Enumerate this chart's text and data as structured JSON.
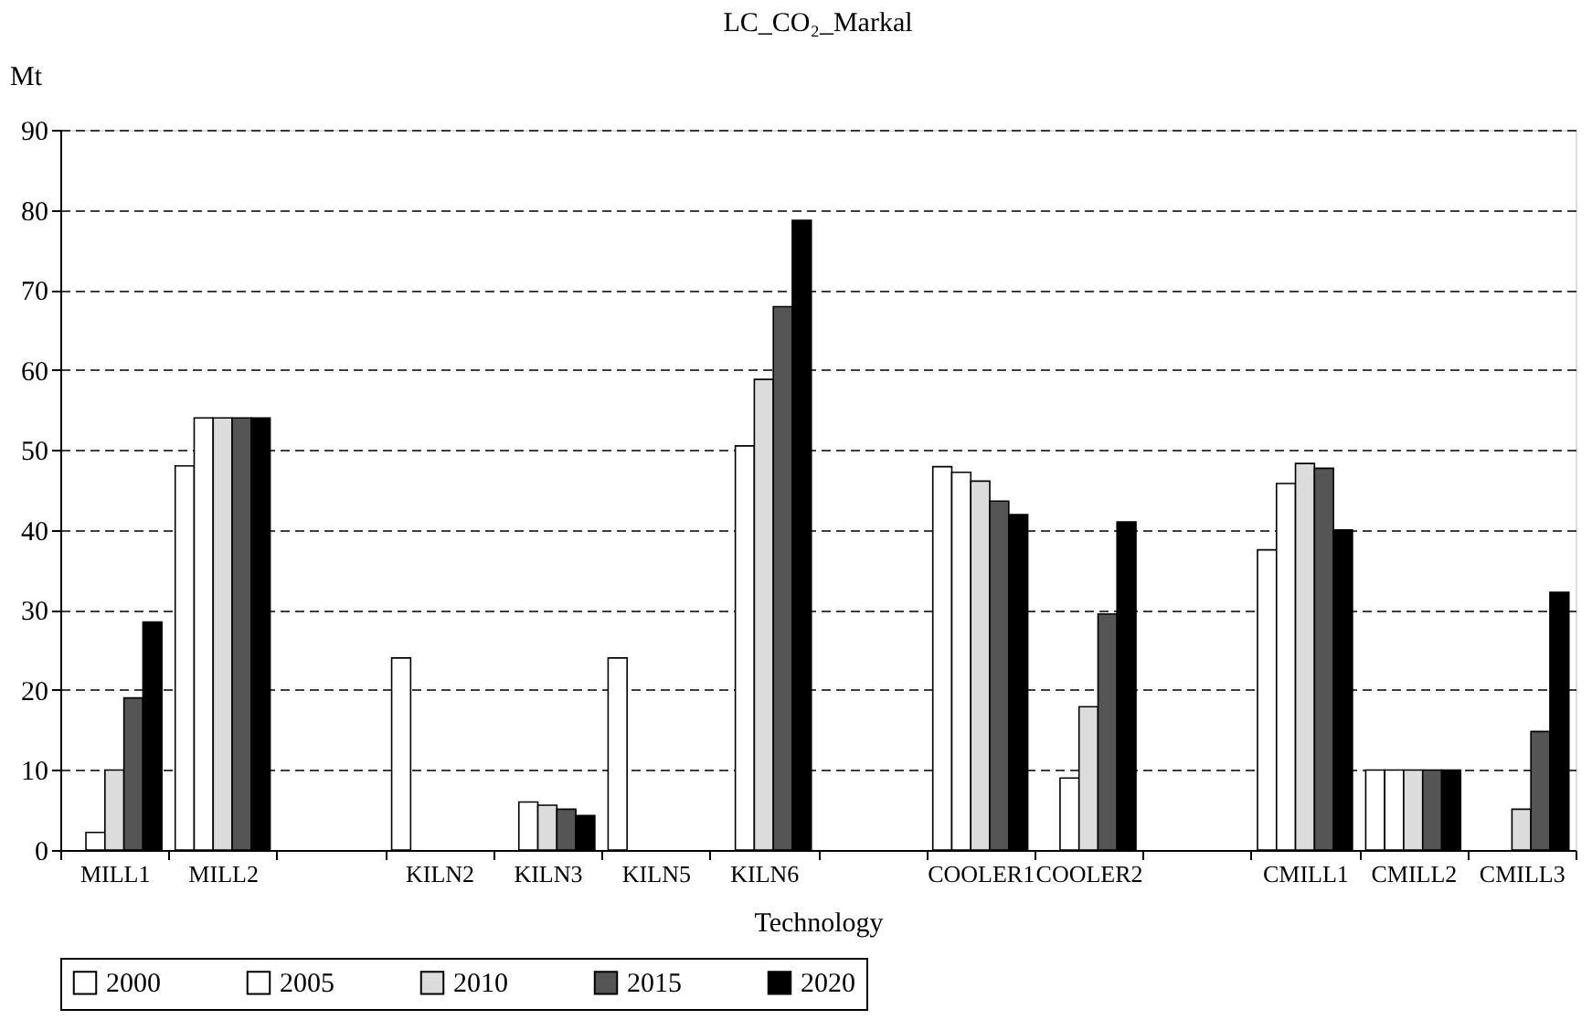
{
  "chart_data": {
    "type": "bar",
    "title": "LC_CO₂_Markal",
    "xlabel": "Technology",
    "ylabel": "Mt",
    "categories": [
      "MILL1",
      "MILL2",
      null,
      "KILN2",
      "KILN3",
      "KILN5",
      "KILN6",
      null,
      "COOLER1",
      "COOLER2",
      null,
      "CMILL1",
      "CMILL2",
      "CMILL3"
    ],
    "series": [
      {
        "name": "2000",
        "color": "#ffffff",
        "values": [
          null,
          48,
          null,
          24,
          null,
          24,
          null,
          null,
          47.9,
          null,
          null,
          37.5,
          10,
          null
        ]
      },
      {
        "name": "2005",
        "color": "#ffffff",
        "values": [
          2.2,
          54,
          null,
          null,
          6.0,
          null,
          50.5,
          null,
          47.2,
          9.0,
          null,
          45.8,
          10,
          null
        ]
      },
      {
        "name": "2010",
        "color": "#dcdcdc",
        "values": [
          10,
          54,
          null,
          null,
          5.6,
          null,
          58.8,
          null,
          46.1,
          17.9,
          null,
          48.3,
          10,
          5.1
        ]
      },
      {
        "name": "2015",
        "color": "#555555",
        "values": [
          19,
          54,
          null,
          null,
          5.1,
          null,
          67.9,
          null,
          43.6,
          29.5,
          null,
          47.7,
          10,
          14.8
        ]
      },
      {
        "name": "2020",
        "color": "#000000",
        "values": [
          28.5,
          54,
          null,
          null,
          4.3,
          null,
          78.7,
          null,
          41.9,
          41.0,
          null,
          40.0,
          10,
          32.2
        ]
      }
    ],
    "ylim": [
      0,
      90
    ],
    "yticks": [
      0,
      10,
      20,
      30,
      40,
      50,
      60,
      70,
      80,
      90
    ],
    "grid": "y",
    "legend": "bottom"
  }
}
